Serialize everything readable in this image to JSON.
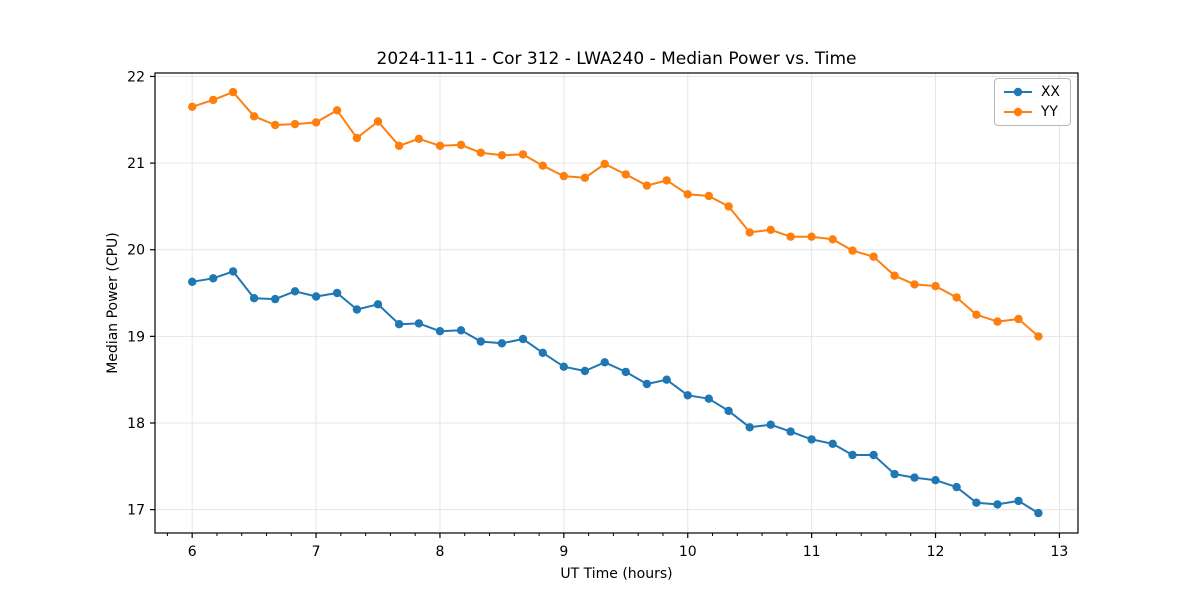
{
  "chart_data": {
    "type": "line",
    "title": "2024-11-11 - Cor 312 - LWA240 - Median Power vs. Time",
    "xlabel": "UT Time (hours)",
    "ylabel": "Median Power (CPU)",
    "xlim": [
      5.7,
      13.15
    ],
    "ylim": [
      16.73,
      22.04
    ],
    "xticks": [
      6,
      7,
      8,
      9,
      10,
      11,
      12,
      13
    ],
    "yticks": [
      17,
      18,
      19,
      20,
      21,
      22
    ],
    "x_minor_step": 0.2,
    "grid": true,
    "grid_color": "#e6e6e6",
    "legend_position": "upper right",
    "marker": "circle",
    "x": [
      6.0,
      6.17,
      6.33,
      6.5,
      6.67,
      6.83,
      7.0,
      7.17,
      7.33,
      7.5,
      7.67,
      7.83,
      8.0,
      8.17,
      8.33,
      8.5,
      8.67,
      8.83,
      9.0,
      9.17,
      9.33,
      9.5,
      9.67,
      9.83,
      10.0,
      10.17,
      10.33,
      10.5,
      10.67,
      10.83,
      11.0,
      11.17,
      11.33,
      11.5,
      11.67,
      11.83,
      12.0,
      12.17,
      12.33,
      12.5,
      12.67,
      12.83
    ],
    "series": [
      {
        "name": "XX",
        "color": "#1f77b4",
        "values": [
          19.63,
          19.67,
          19.75,
          19.44,
          19.43,
          19.52,
          19.46,
          19.5,
          19.31,
          19.37,
          19.14,
          19.15,
          19.06,
          19.07,
          18.94,
          18.92,
          18.97,
          18.81,
          18.65,
          18.6,
          18.7,
          18.59,
          18.45,
          18.5,
          18.32,
          18.28,
          18.14,
          17.95,
          17.98,
          17.9,
          17.81,
          17.76,
          17.63,
          17.63,
          17.41,
          17.37,
          17.34,
          17.26,
          17.08,
          17.06,
          17.1,
          16.96
        ]
      },
      {
        "name": "YY",
        "color": "#ff7f0e",
        "values": [
          21.65,
          21.73,
          21.82,
          21.54,
          21.44,
          21.45,
          21.47,
          21.61,
          21.29,
          21.48,
          21.2,
          21.28,
          21.2,
          21.21,
          21.12,
          21.09,
          21.1,
          20.97,
          20.85,
          20.83,
          20.99,
          20.87,
          20.74,
          20.8,
          20.64,
          20.62,
          20.5,
          20.2,
          20.23,
          20.15,
          20.15,
          20.12,
          19.99,
          19.92,
          19.7,
          19.6,
          19.58,
          19.45,
          19.25,
          19.17,
          19.2,
          19.0
        ]
      }
    ]
  }
}
